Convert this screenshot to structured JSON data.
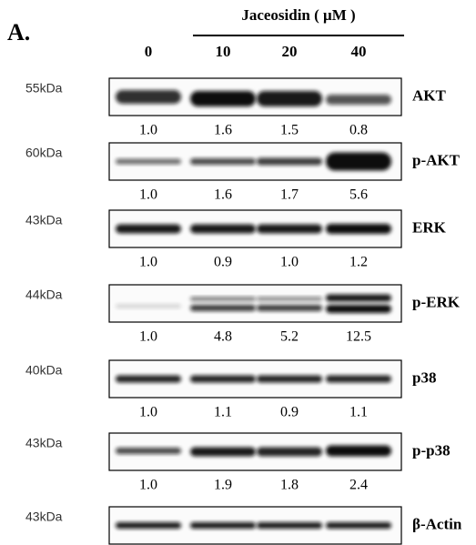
{
  "panel_label": "A.",
  "treatment": "Jaceosidin ( μM )",
  "lanes": [
    "0",
    "10",
    "20",
    "40"
  ],
  "blots": [
    {
      "marker": "55kDa",
      "name": "AKT",
      "quant": [
        "1.0",
        "1.6",
        "1.5",
        "0.8"
      ]
    },
    {
      "marker": "60kDa",
      "name": "p-AKT",
      "quant": [
        "1.0",
        "1.6",
        "1.7",
        "5.6"
      ]
    },
    {
      "marker": "43kDa",
      "name": "ERK",
      "quant": [
        "1.0",
        "0.9",
        "1.0",
        "1.2"
      ]
    },
    {
      "marker": "44kDa",
      "name": "p-ERK",
      "quant": [
        "1.0",
        "4.8",
        "5.2",
        "12.5"
      ]
    },
    {
      "marker": "40kDa",
      "name": "p38",
      "quant": [
        "1.0",
        "1.1",
        "0.9",
        "1.1"
      ]
    },
    {
      "marker": "43kDa",
      "name": "p-p38",
      "quant": [
        "1.0",
        "1.9",
        "1.8",
        "2.4"
      ]
    },
    {
      "marker": "43kDa",
      "name": "β-Actin"
    }
  ]
}
